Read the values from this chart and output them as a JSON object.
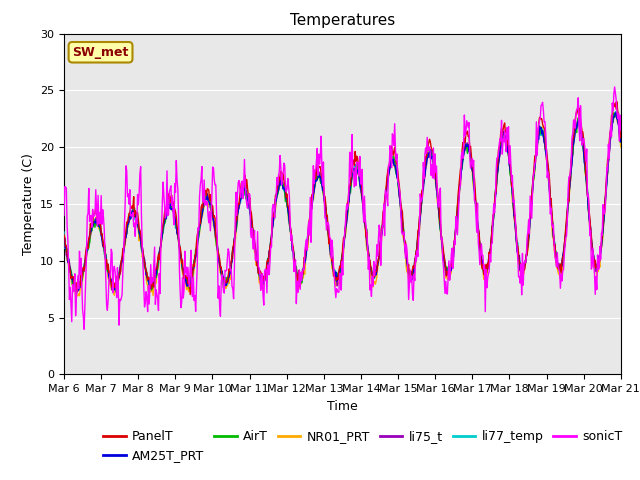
{
  "title": "Temperatures",
  "xlabel": "Time",
  "ylabel": "Temperature (C)",
  "ylim": [
    0,
    30
  ],
  "x_tick_labels": [
    "Mar 6",
    "Mar 7",
    "Mar 8",
    "Mar 9",
    "Mar 10",
    "Mar 11",
    "Mar 12",
    "Mar 13",
    "Mar 14",
    "Mar 15",
    "Mar 16",
    "Mar 17",
    "Mar 18",
    "Mar 19",
    "Mar 20",
    "Mar 21"
  ],
  "series": {
    "PanelT": {
      "color": "#dd0000",
      "lw": 1.0
    },
    "AM25T_PRT": {
      "color": "#0000dd",
      "lw": 1.0
    },
    "AirT": {
      "color": "#00bb00",
      "lw": 1.0
    },
    "NR01_PRT": {
      "color": "#ffaa00",
      "lw": 1.0
    },
    "li75_t": {
      "color": "#9900bb",
      "lw": 1.0
    },
    "li77_temp": {
      "color": "#00cccc",
      "lw": 1.0
    },
    "sonicT": {
      "color": "#ff00ff",
      "lw": 1.0
    }
  },
  "annotation_text": "SW_met",
  "background_color": "#e8e8e8",
  "title_fontsize": 11,
  "axis_fontsize": 9,
  "tick_fontsize": 8,
  "legend_fontsize": 9
}
